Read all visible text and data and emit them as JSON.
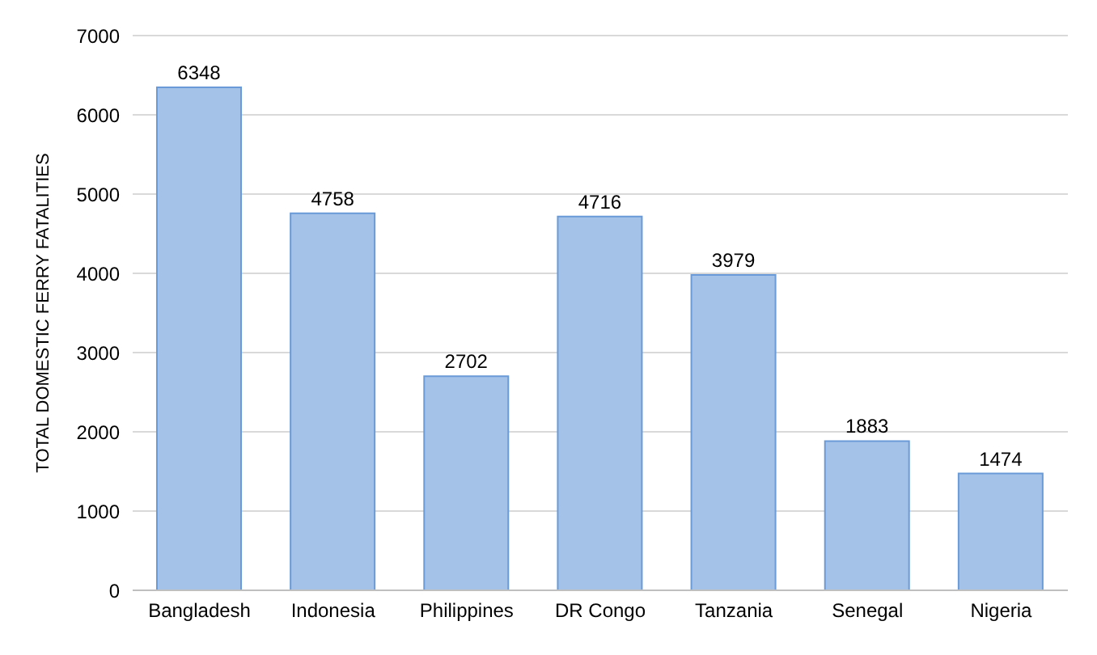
{
  "chart_data": {
    "type": "bar",
    "ylabel": "TOTAL DOMESTIC FERRY FATALITIES",
    "categories": [
      "Bangladesh",
      "Indonesia",
      "Philippines",
      "DR Congo",
      "Tanzania",
      "Senegal",
      "Nigeria"
    ],
    "values": [
      6348,
      4758,
      2702,
      4716,
      3979,
      1883,
      1474
    ],
    "color": "#a4c2e8",
    "ylim": [
      0,
      7000
    ],
    "yticks": [
      0,
      1000,
      2000,
      3000,
      4000,
      5000,
      6000,
      7000
    ],
    "grid": "y",
    "data_labels": true,
    "legend": false
  }
}
